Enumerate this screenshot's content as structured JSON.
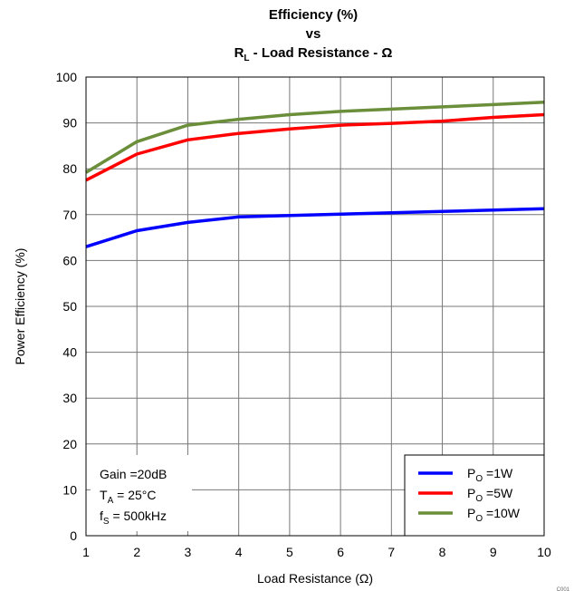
{
  "chart_data": {
    "type": "line",
    "title": {
      "line1": "Efficiency (%)",
      "line2": "vs",
      "line3_prefix": "R",
      "line3_sub": "L",
      "line3_rest": " - Load Resistance - Ω"
    },
    "xlabel": "Load Resistance (Ω)",
    "ylabel": "Power Efficiency (%)",
    "xlim": [
      1,
      10
    ],
    "ylim": [
      0,
      100
    ],
    "xticks": [
      1,
      2,
      3,
      4,
      5,
      6,
      7,
      8,
      9,
      10
    ],
    "yticks": [
      0,
      10,
      20,
      30,
      40,
      50,
      60,
      70,
      80,
      90,
      100
    ],
    "grid": true,
    "legend_position": "bottom-right",
    "annotations": {
      "gain": "Gain =20dB",
      "ta_prefix": "T",
      "ta_sub": "A",
      "ta_rest": " = 25°C",
      "fs_prefix": "f",
      "fs_sub": "S",
      "fs_rest": " = 500kHz"
    },
    "x": [
      1,
      2,
      3,
      4,
      5,
      6,
      7,
      8,
      9,
      10
    ],
    "series": [
      {
        "name_prefix": "P",
        "name_sub": "O",
        "name_rest": " =1W",
        "color": "#0000ff",
        "values": [
          63,
          66.5,
          68.3,
          69.5,
          69.8,
          70.1,
          70.4,
          70.7,
          71.0,
          71.3
        ]
      },
      {
        "name_prefix": "P",
        "name_sub": "O",
        "name_rest": " =5W",
        "color": "#ff0000",
        "values": [
          77.5,
          83.2,
          86.3,
          87.7,
          88.7,
          89.5,
          89.9,
          90.4,
          91.2,
          91.8
        ]
      },
      {
        "name_prefix": "P",
        "name_sub": "O",
        "name_rest": " =10W",
        "color": "#6b8e3a",
        "values": [
          79.2,
          85.9,
          89.5,
          90.8,
          91.8,
          92.5,
          93.0,
          93.5,
          94.0,
          94.5
        ]
      }
    ],
    "figure_id": "C001"
  }
}
